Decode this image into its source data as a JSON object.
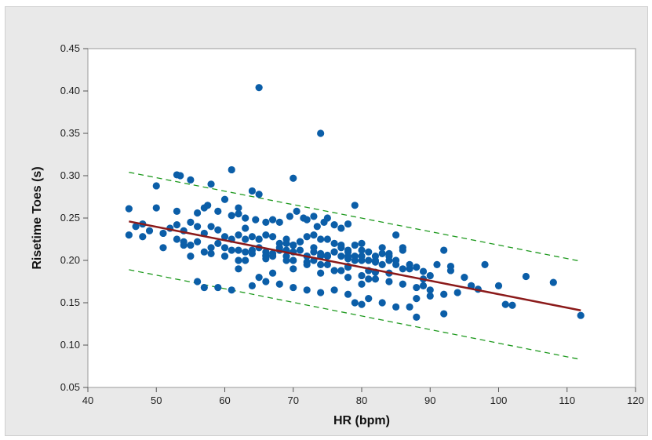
{
  "chart_data": {
    "type": "scatter",
    "title": "",
    "xlabel": "HR (bpm)",
    "ylabel": "Risetime Toes (s)",
    "xlim": [
      40,
      120
    ],
    "ylim": [
      0.05,
      0.45
    ],
    "xticks": [
      40,
      50,
      60,
      70,
      80,
      90,
      100,
      110,
      120
    ],
    "xtick_labels": [
      "40",
      "50",
      "60",
      "70",
      "80",
      "90",
      "100",
      "110",
      "120"
    ],
    "yticks": [
      0.05,
      0.1,
      0.15,
      0.2,
      0.25,
      0.3,
      0.35,
      0.4,
      0.45
    ],
    "ytick_labels": [
      "0.05",
      "0.10",
      "0.15",
      "0.20",
      "0.25",
      "0.30",
      "0.35",
      "0.40",
      "0.45"
    ],
    "grid": false,
    "legend": "none",
    "colors": {
      "points": "#0b5ea8",
      "fit": "#8b1a1a",
      "prediction": "#1f9a1f",
      "panel": "#e9e9e9",
      "plot_bg": "#ffffff"
    },
    "fit_line": {
      "x": [
        46,
        112
      ],
      "y": [
        0.246,
        0.141
      ]
    },
    "prediction_upper": {
      "x": [
        46,
        112
      ],
      "y": [
        0.304,
        0.199
      ]
    },
    "prediction_lower": {
      "x": [
        46,
        112
      ],
      "y": [
        0.189,
        0.083
      ]
    },
    "points": {
      "x": [
        65,
        74,
        61,
        70,
        53.5,
        53,
        55,
        58,
        50,
        64,
        65,
        60,
        62,
        46,
        50,
        53,
        56,
        57,
        57.5,
        59,
        61,
        62,
        63,
        64.5,
        66,
        67,
        68,
        69.5,
        70.5,
        71.5,
        72,
        73,
        73.5,
        74.5,
        75,
        76,
        77,
        78,
        79,
        80,
        46,
        47,
        48,
        49,
        51,
        52,
        53,
        54,
        55,
        56,
        57,
        58,
        59,
        60,
        61,
        62,
        63,
        64,
        65,
        66,
        67,
        68,
        69,
        70,
        71,
        72,
        73,
        74,
        75,
        76,
        77,
        78,
        79,
        80,
        81,
        82,
        83,
        84,
        85,
        86,
        54,
        55,
        56,
        58,
        59,
        60,
        62,
        63,
        64,
        65,
        66,
        67,
        68,
        69,
        70,
        71,
        72,
        73,
        74,
        75,
        76,
        77,
        78,
        79,
        80,
        81,
        82,
        83,
        84,
        85,
        86,
        87,
        88,
        48,
        51,
        54,
        57,
        60,
        63,
        66,
        69,
        72,
        75,
        78,
        81,
        84,
        87,
        89,
        90,
        91,
        92,
        93,
        95,
        96,
        97,
        98,
        53,
        56,
        59,
        62,
        65,
        67,
        70,
        72,
        74,
        76,
        78,
        80,
        82,
        84,
        86,
        88,
        89,
        90,
        92,
        94,
        96,
        100,
        57,
        61,
        64,
        66,
        68,
        70,
        72,
        74,
        76,
        78,
        79,
        80,
        81,
        83,
        85,
        87,
        88,
        90,
        92,
        101,
        102,
        104,
        108,
        112,
        88,
        80,
        78,
        63,
        67,
        71,
        75,
        79,
        83,
        64,
        68,
        72,
        76,
        80,
        84,
        69,
        73,
        77,
        81,
        85,
        65,
        69,
        71,
        73,
        75,
        77,
        61,
        66,
        70,
        74,
        78,
        82,
        86,
        55,
        58,
        62,
        66,
        70,
        74,
        78,
        82,
        89,
        93
      ],
      "y": [
        0.404,
        0.35,
        0.307,
        0.297,
        0.3,
        0.301,
        0.295,
        0.29,
        0.288,
        0.282,
        0.278,
        0.272,
        0.262,
        0.261,
        0.262,
        0.258,
        0.256,
        0.262,
        0.265,
        0.258,
        0.253,
        0.255,
        0.25,
        0.248,
        0.245,
        0.248,
        0.245,
        0.252,
        0.258,
        0.25,
        0.248,
        0.252,
        0.24,
        0.245,
        0.25,
        0.242,
        0.238,
        0.243,
        0.265,
        0.22,
        0.23,
        0.24,
        0.243,
        0.235,
        0.232,
        0.238,
        0.242,
        0.235,
        0.245,
        0.24,
        0.232,
        0.24,
        0.236,
        0.228,
        0.225,
        0.23,
        0.238,
        0.228,
        0.225,
        0.23,
        0.228,
        0.22,
        0.225,
        0.218,
        0.222,
        0.228,
        0.23,
        0.225,
        0.225,
        0.22,
        0.215,
        0.212,
        0.218,
        0.212,
        0.21,
        0.205,
        0.208,
        0.205,
        0.2,
        0.215,
        0.222,
        0.218,
        0.222,
        0.215,
        0.22,
        0.215,
        0.212,
        0.21,
        0.212,
        0.215,
        0.21,
        0.208,
        0.212,
        0.205,
        0.21,
        0.212,
        0.205,
        0.21,
        0.208,
        0.205,
        0.21,
        0.205,
        0.202,
        0.2,
        0.205,
        0.2,
        0.198,
        0.195,
        0.2,
        0.195,
        0.19,
        0.195,
        0.192,
        0.228,
        0.215,
        0.218,
        0.21,
        0.205,
        0.2,
        0.205,
        0.2,
        0.198,
        0.195,
        0.192,
        0.188,
        0.185,
        0.19,
        0.187,
        0.182,
        0.195,
        0.212,
        0.193,
        0.18,
        0.17,
        0.166,
        0.195,
        0.225,
        0.175,
        0.168,
        0.19,
        0.18,
        0.185,
        0.19,
        0.195,
        0.185,
        0.188,
        0.18,
        0.182,
        0.178,
        0.175,
        0.172,
        0.168,
        0.17,
        0.165,
        0.16,
        0.162,
        0.17,
        0.17,
        0.168,
        0.165,
        0.17,
        0.175,
        0.172,
        0.168,
        0.165,
        0.162,
        0.165,
        0.16,
        0.15,
        0.148,
        0.155,
        0.15,
        0.145,
        0.145,
        0.155,
        0.158,
        0.137,
        0.148,
        0.147,
        0.181,
        0.174,
        0.135,
        0.133,
        0.172,
        0.21,
        0.225,
        0.205,
        0.222,
        0.205,
        0.205,
        0.215,
        0.208,
        0.215,
        0.205,
        0.21,
        0.2,
        0.208,
        0.212,
        0.2,
        0.188,
        0.178,
        0.23,
        0.225,
        0.22,
        0.222,
        0.215,
        0.206,
        0.218,
        0.212,
        0.206,
        0.218,
        0.205,
        0.205,
        0.2,
        0.212,
        0.205,
        0.208,
        0.2,
        0.202,
        0.2,
        0.195,
        0.193,
        0.186,
        0.178,
        0.188
      ]
    }
  }
}
